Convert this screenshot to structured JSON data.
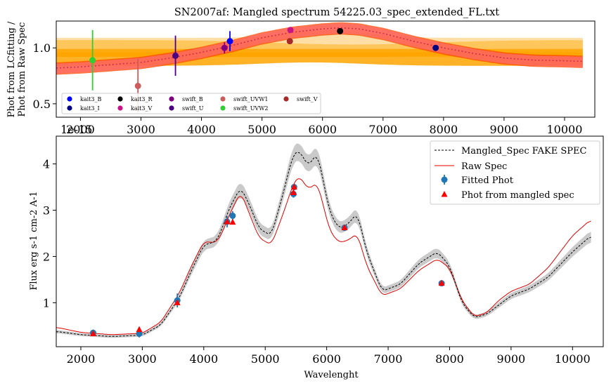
{
  "colors": {
    "orange_band": "#FFA500",
    "light_band": "#FFD27F",
    "red_band": "#FF4500",
    "salmon_band": "#FF6F6F",
    "dotted_fit": "#C8324B",
    "raw_spec": "#E00000",
    "mangled_spec": "#000000",
    "spec_band": "#B8B8B8",
    "fitted_phot": "#1F77B4",
    "mangled_phot": "#FF0000"
  },
  "chart_data": [
    {
      "type": "scatter",
      "title": "SN2007af: Mangled spectrum 54225.03_spec_extended_FL.txt",
      "ylabel_line1": "Phot from LCfitting /",
      "ylabel_line2": "Phot from Raw Spec",
      "offset_text": "1e-15",
      "xlim": [
        1600,
        10500
      ],
      "ylim": [
        0.38,
        1.24
      ],
      "xticks": [
        2000,
        3000,
        4000,
        5000,
        6000,
        7000,
        8000,
        9000,
        10000
      ],
      "xtick_labels": [
        "2000",
        "3000",
        "4000",
        "5000",
        "6000",
        "7000",
        "8000",
        "9000",
        "10000"
      ],
      "yticks": [
        0.5,
        1.0
      ],
      "ytick_labels": [
        "0.5",
        "1.0"
      ],
      "legend_position": "lower-left",
      "ratio_curve_x": [
        1600,
        2000,
        2500,
        3000,
        3500,
        4000,
        4500,
        5000,
        5500,
        6000,
        6300,
        6600,
        7000,
        7500,
        8000,
        8500,
        9000,
        9500,
        10000,
        10300
      ],
      "ratio_curve_y": [
        0.82,
        0.83,
        0.85,
        0.87,
        0.91,
        0.96,
        1.02,
        1.09,
        1.14,
        1.17,
        1.18,
        1.17,
        1.13,
        1.06,
        1.0,
        0.95,
        0.91,
        0.89,
        0.885,
        0.88
      ],
      "points": [
        {
          "name": "kait3_B",
          "x": 4470,
          "y": 1.06,
          "err": 0.09,
          "color": "#0000FF"
        },
        {
          "name": "kait3_I",
          "x": 7870,
          "y": 1.0,
          "err": 0.01,
          "color": "#000080"
        },
        {
          "name": "kait3_R",
          "x": 6290,
          "y": 1.15,
          "err": 0.01,
          "color": "#000000"
        },
        {
          "name": "kait3_V",
          "x": 5470,
          "y": 1.16,
          "err": 0.02,
          "color": "#C71585"
        },
        {
          "name": "swift_B",
          "x": 4380,
          "y": 1.0,
          "err": 0.05,
          "color": "#800080"
        },
        {
          "name": "swift_U",
          "x": 3570,
          "y": 0.93,
          "err": 0.18,
          "color": "#4B0082"
        },
        {
          "name": "swift_UVW1",
          "x": 2950,
          "y": 0.66,
          "err": 0.24,
          "color": "#CD5C5C"
        },
        {
          "name": "swift_UVW2",
          "x": 2200,
          "y": 0.89,
          "err": 0.27,
          "color": "#32CD32"
        },
        {
          "name": "swift_V",
          "x": 5460,
          "y": 1.06,
          "err": 0.01,
          "color": "#A52A2A"
        }
      ],
      "legend": [
        "kait3_B",
        "kait3_I",
        "kait3_R",
        "kait3_V",
        "swift_B",
        "swift_U",
        "swift_UVW1",
        "swift_UVW2",
        "swift_V"
      ]
    },
    {
      "type": "line",
      "xlabel": "Wavelenght",
      "ylabel": "Flux erg s-1 cm-2 A-1",
      "xlim": [
        1600,
        10500
      ],
      "ylim": [
        0.05,
        4.6
      ],
      "xticks": [
        2000,
        3000,
        4000,
        5000,
        6000,
        7000,
        8000,
        9000,
        10000
      ],
      "xtick_labels": [
        "2000",
        "3000",
        "4000",
        "5000",
        "6000",
        "7000",
        "8000",
        "9000",
        "10000"
      ],
      "yticks": [
        1,
        2,
        3,
        4
      ],
      "ytick_labels": [
        "1",
        "2",
        "3",
        "4"
      ],
      "legend_position": "top-right",
      "series": [
        {
          "name": "Mangled_Spec FAKE SPEC",
          "x": [
            1600,
            2000,
            2500,
            3000,
            3300,
            3600,
            3800,
            4000,
            4200,
            4300,
            4400,
            4600,
            4750,
            4900,
            5100,
            5300,
            5450,
            5550,
            5700,
            5850,
            6050,
            6200,
            6350,
            6500,
            6650,
            6900,
            7200,
            7500,
            7800,
            8000,
            8200,
            8400,
            8600,
            8800,
            9000,
            9300,
            9600,
            10000,
            10300
          ],
          "y": [
            0.38,
            0.31,
            0.27,
            0.3,
            0.52,
            1.1,
            1.7,
            2.25,
            2.32,
            2.6,
            3.0,
            3.5,
            3.1,
            2.6,
            2.45,
            3.4,
            4.2,
            4.3,
            3.95,
            4.25,
            2.95,
            2.6,
            2.7,
            2.95,
            2.1,
            1.25,
            1.4,
            1.85,
            2.1,
            1.8,
            1.0,
            0.68,
            0.75,
            0.95,
            1.15,
            1.3,
            1.55,
            2.1,
            2.45
          ]
        },
        {
          "name": "Raw Spec",
          "x": [
            1600,
            2000,
            2500,
            3000,
            3300,
            3600,
            3800,
            4000,
            4200,
            4300,
            4400,
            4600,
            4750,
            4900,
            5100,
            5300,
            5450,
            5550,
            5700,
            5850,
            6050,
            6200,
            6350,
            6500,
            6650,
            6900,
            7200,
            7500,
            7800,
            8000,
            8200,
            8400,
            8600,
            8800,
            9000,
            9300,
            9600,
            10000,
            10300
          ],
          "y": [
            0.47,
            0.36,
            0.31,
            0.34,
            0.58,
            1.2,
            1.8,
            2.32,
            2.3,
            2.5,
            2.85,
            3.4,
            2.9,
            2.4,
            2.25,
            2.95,
            3.55,
            3.75,
            3.45,
            3.6,
            2.55,
            2.3,
            2.35,
            2.5,
            1.8,
            1.15,
            1.3,
            1.7,
            1.95,
            1.75,
            1.05,
            0.7,
            0.78,
            1.05,
            1.25,
            1.4,
            1.75,
            2.45,
            2.8
          ]
        }
      ],
      "fitted_phot": {
        "name": "Fitted Phot",
        "x": [
          2200,
          2950,
          3570,
          4380,
          4470,
          5460,
          5470,
          6290,
          7870
        ],
        "y": [
          0.35,
          0.33,
          1.05,
          2.75,
          2.88,
          3.35,
          3.5,
          2.62,
          1.42
        ],
        "err": [
          0.07,
          0.08,
          0.15,
          0.12,
          0.1,
          0.08,
          0.06,
          0.03,
          0.03
        ]
      },
      "mangled_phot": {
        "name": "Phot from mangled spec",
        "x": [
          2200,
          2950,
          3570,
          4380,
          4470,
          5460,
          5470,
          6290,
          7870
        ],
        "y": [
          0.33,
          0.42,
          1.0,
          2.75,
          2.74,
          3.38,
          3.5,
          2.62,
          1.42
        ]
      },
      "legend": [
        "Mangled_Spec FAKE SPEC",
        "Raw Spec",
        "Fitted Phot",
        "Phot from mangled spec"
      ]
    }
  ]
}
